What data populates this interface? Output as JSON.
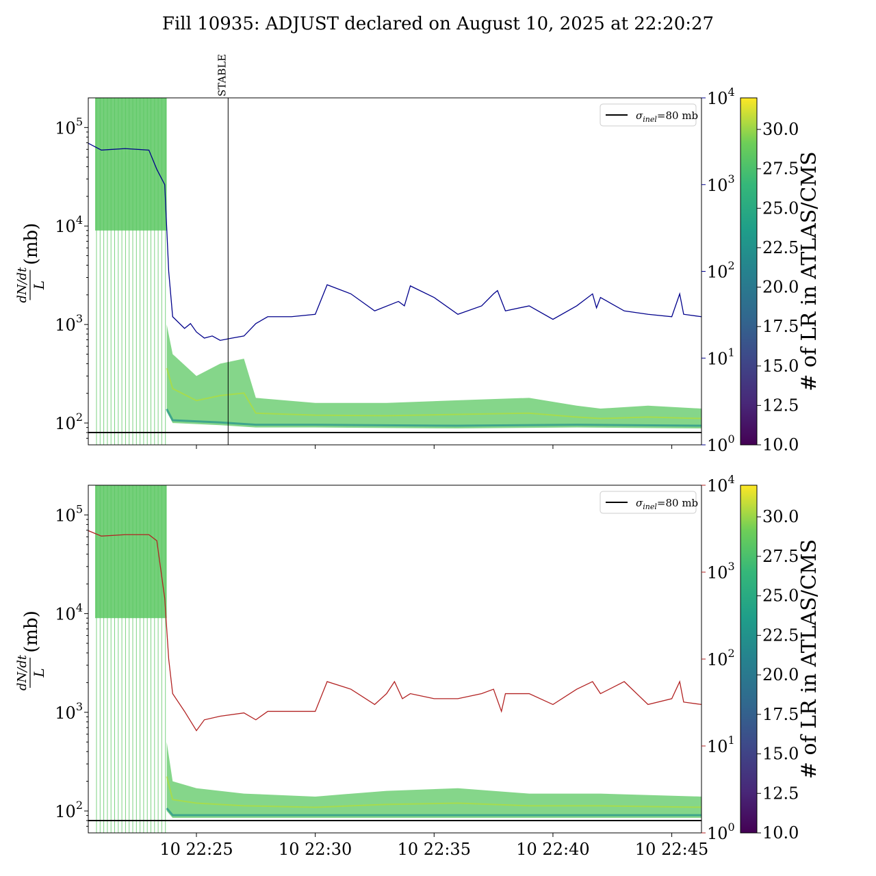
{
  "title": "Fill 10935: ADJUST declared on August 10, 2025 at 22:20:27",
  "colors": {
    "band_green": "#5cc863",
    "band_teal": "#21908d",
    "band_yellow": "#bddf26",
    "top_series": "#00008b",
    "bottom_series": "#b22222",
    "sigma_line": "#000000"
  },
  "chart_data": [
    {
      "type": "line",
      "panel": "top",
      "ylabel": "dN/dt / L (mb)",
      "y_scale": "log",
      "ylim": [
        60,
        200000
      ],
      "y_ticks": [
        100,
        1000,
        10000,
        100000
      ],
      "y_tick_labels": [
        {
          "base": "10",
          "exp": "2"
        },
        {
          "base": "10",
          "exp": "3"
        },
        {
          "base": "10",
          "exp": "4"
        },
        {
          "base": "10",
          "exp": "5"
        }
      ],
      "y2_scale": "log",
      "y2lim": [
        1,
        10000
      ],
      "y2_tick_labels": [
        {
          "base": "10",
          "exp": "0"
        },
        {
          "base": "10",
          "exp": "1"
        },
        {
          "base": "10",
          "exp": "2"
        },
        {
          "base": "10",
          "exp": "3"
        },
        {
          "base": "10",
          "exp": "4"
        }
      ],
      "x_range": [
        "2025-08-10 22:20:27",
        "2025-08-10 22:46:15"
      ],
      "annotation": "STABLE",
      "annotation_time": "22:26:20",
      "legend": {
        "symbol": "σ",
        "sub": "inel",
        "rest": "=80 mb"
      },
      "sigma_inel_mb": 80,
      "series": [
        {
          "axis": "right",
          "x": [
            "22:20:27",
            "22:21:00",
            "22:22:00",
            "22:23:00",
            "22:23:20",
            "22:23:40",
            "22:23:50",
            "22:24:00",
            "22:24:30",
            "22:24:45",
            "22:25:00",
            "22:25:20",
            "22:25:40",
            "22:26:00",
            "22:26:30",
            "22:27:00",
            "22:27:30",
            "22:28:00",
            "22:29:00",
            "22:30:00",
            "22:30:30",
            "22:31:30",
            "22:32:30",
            "22:33:30",
            "22:33:45",
            "22:34:00",
            "22:35:00",
            "22:36:00",
            "22:37:00",
            "22:37:30",
            "22:37:40",
            "22:38:00",
            "22:39:00",
            "22:40:00",
            "22:41:00",
            "22:41:40",
            "22:41:50",
            "22:42:00",
            "22:43:00",
            "22:44:00",
            "22:45:00",
            "22:45:20",
            "22:45:30",
            "22:46:15"
          ],
          "values": [
            3000,
            2500,
            2600,
            2500,
            1500,
            1000,
            100,
            30,
            22,
            25,
            20,
            17,
            18,
            16,
            17,
            18,
            25,
            30,
            30,
            32,
            70,
            55,
            35,
            45,
            40,
            68,
            50,
            32,
            40,
            55,
            60,
            35,
            40,
            28,
            40,
            55,
            38,
            50,
            35,
            32,
            30,
            55,
            32,
            30
          ]
        },
        {
          "axis": "left",
          "name": "band_upper",
          "x": [
            "22:23:45",
            "22:24:00",
            "22:25:00",
            "22:26:00",
            "22:27:00",
            "22:27:30",
            "22:30:00",
            "22:33:00",
            "22:36:00",
            "22:39:00",
            "22:41:00",
            "22:42:00",
            "22:44:00",
            "22:46:15"
          ],
          "values": [
            1000,
            500,
            300,
            400,
            450,
            180,
            160,
            160,
            170,
            180,
            150,
            140,
            150,
            140
          ]
        },
        {
          "axis": "left",
          "name": "band_lower",
          "x": [
            "22:23:45",
            "22:24:00",
            "22:26:00",
            "22:27:30",
            "22:30:00",
            "22:36:00",
            "22:41:00",
            "22:46:15"
          ],
          "values": [
            130,
            100,
            95,
            90,
            90,
            88,
            90,
            88
          ]
        }
      ]
    },
    {
      "type": "line",
      "panel": "bottom",
      "ylabel": "dN/dt / L (mb)",
      "y_scale": "log",
      "ylim": [
        60,
        200000
      ],
      "y_ticks": [
        100,
        1000,
        10000,
        100000
      ],
      "y_tick_labels": [
        {
          "base": "10",
          "exp": "2"
        },
        {
          "base": "10",
          "exp": "3"
        },
        {
          "base": "10",
          "exp": "4"
        },
        {
          "base": "10",
          "exp": "5"
        }
      ],
      "y2_scale": "log",
      "y2lim": [
        1,
        10000
      ],
      "y2_tick_labels": [
        {
          "base": "10",
          "exp": "0"
        },
        {
          "base": "10",
          "exp": "1"
        },
        {
          "base": "10",
          "exp": "2"
        },
        {
          "base": "10",
          "exp": "3"
        },
        {
          "base": "10",
          "exp": "4"
        }
      ],
      "x_ticks": [
        "22:25:00",
        "22:30:00",
        "22:35:00",
        "22:40:00",
        "22:45:00"
      ],
      "x_tick_labels": [
        "10 22:25",
        "10 22:30",
        "10 22:35",
        "10 22:40",
        "10 22:45"
      ],
      "legend": {
        "symbol": "σ",
        "sub": "inel",
        "rest": "=80 mb"
      },
      "sigma_inel_mb": 80,
      "series": [
        {
          "axis": "right",
          "x": [
            "22:20:27",
            "22:21:00",
            "22:22:00",
            "22:23:00",
            "22:23:20",
            "22:23:40",
            "22:23:50",
            "22:24:00",
            "22:24:30",
            "22:25:00",
            "22:25:20",
            "22:26:00",
            "22:27:00",
            "22:27:30",
            "22:28:00",
            "22:29:00",
            "22:30:00",
            "22:30:30",
            "22:31:30",
            "22:32:30",
            "22:33:00",
            "22:33:20",
            "22:33:40",
            "22:34:00",
            "22:35:00",
            "22:36:00",
            "22:37:00",
            "22:37:30",
            "22:37:50",
            "22:38:00",
            "22:39:00",
            "22:40:00",
            "22:41:00",
            "22:41:40",
            "22:42:00",
            "22:43:00",
            "22:44:00",
            "22:45:00",
            "22:45:20",
            "22:45:30",
            "22:46:15"
          ],
          "values": [
            3000,
            2600,
            2700,
            2700,
            2300,
            500,
            100,
            40,
            25,
            15,
            20,
            22,
            24,
            20,
            25,
            25,
            25,
            55,
            45,
            30,
            40,
            55,
            35,
            40,
            35,
            35,
            40,
            45,
            25,
            40,
            40,
            30,
            45,
            55,
            40,
            55,
            30,
            35,
            55,
            32,
            30
          ]
        },
        {
          "axis": "left",
          "name": "band_upper",
          "x": [
            "22:23:45",
            "22:24:00",
            "22:25:00",
            "22:27:00",
            "22:30:00",
            "22:33:00",
            "22:36:00",
            "22:39:00",
            "22:42:00",
            "22:46:15"
          ],
          "values": [
            500,
            200,
            170,
            150,
            140,
            160,
            170,
            150,
            150,
            140
          ]
        },
        {
          "axis": "left",
          "name": "band_lower",
          "x": [
            "22:23:45",
            "22:24:00",
            "22:30:00",
            "22:46:15"
          ],
          "values": [
            100,
            85,
            85,
            85
          ]
        }
      ]
    }
  ],
  "colorbar": {
    "label": "# of LR in ATLAS/CMS",
    "range": [
      10,
      32
    ],
    "ticks": [
      "10.0",
      "12.5",
      "15.0",
      "17.5",
      "20.0",
      "22.5",
      "25.0",
      "27.5",
      "30.0"
    ]
  }
}
